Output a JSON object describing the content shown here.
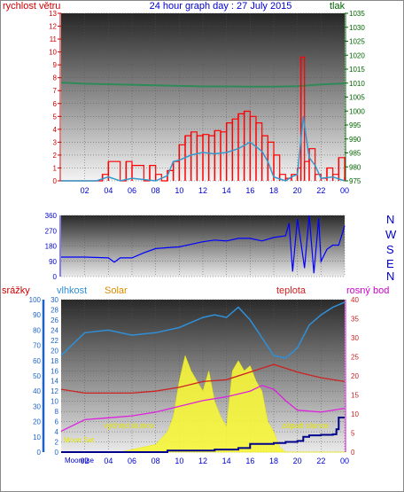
{
  "header": {
    "wind_label": "rychlost větru",
    "title": "24 hour graph day : 27 July 2015",
    "pressure_label": "tlak"
  },
  "direction_labels": [
    "N",
    "W",
    "S",
    "E",
    "N"
  ],
  "bottom_header": {
    "rain_label": "srážky",
    "humidity_label": "vlhkost",
    "solar_label": "Solar",
    "temp_label": "teplota",
    "dew_label": "rosný bod"
  },
  "annotations": {
    "sunrise": "východ slunce",
    "sunset": "západ slunce",
    "moonset": "Moon Set",
    "moonrise": "Moonrise"
  },
  "colors": {
    "wind_label": "#cc0000",
    "title": "#0000cc",
    "pressure_label": "#006600",
    "gust": "#ff0000",
    "wind_avg": "#3399cc",
    "pressure": "#2e8b57",
    "direction": "#0000ff",
    "humidity": "#2f8fd8",
    "solar": "#f5f53a",
    "temp": "#cc2222",
    "dew": "#dd22dd",
    "rain": "#00008b",
    "rain_axis": "#1e64c8",
    "solar_label": "#e08a00",
    "dew_axis": "#cc00cc"
  },
  "chart_data": [
    {
      "type": "line",
      "title": "24 hour graph day : 27 July 2015",
      "x": {
        "ticks": [
          "02",
          "04",
          "06",
          "08",
          "10",
          "12",
          "14",
          "16",
          "18",
          "20",
          "22",
          "00"
        ],
        "range_hours": [
          0,
          24
        ]
      },
      "y_left": {
        "label": "rychlost větru",
        "range": [
          0,
          13
        ],
        "ticks": [
          0,
          1,
          2,
          3,
          4,
          5,
          6,
          7,
          8,
          9,
          10,
          11,
          12,
          13
        ]
      },
      "y_right": {
        "label": "tlak",
        "range": [
          975,
          1035
        ],
        "ticks": [
          975,
          980,
          985,
          990,
          995,
          1000,
          1005,
          1010,
          1015,
          1020,
          1025,
          1030,
          1035
        ]
      },
      "series": [
        {
          "name": "rychlost větru",
          "role": "gust",
          "x": [
            0,
            1,
            2,
            3,
            3.5,
            4,
            5,
            5.5,
            6,
            7,
            7.5,
            8,
            8.5,
            9,
            9.5,
            10,
            10.5,
            11,
            11.5,
            12,
            12.5,
            13,
            13.5,
            14,
            14.5,
            15,
            15.5,
            16,
            16.5,
            17,
            17.5,
            18,
            18.5,
            19,
            19.5,
            20,
            20.3,
            20.6,
            21,
            21.5,
            22,
            22.5,
            23,
            23.5,
            24
          ],
          "values": [
            0,
            0,
            0,
            0,
            0.5,
            1.5,
            0,
            1.5,
            1.2,
            0,
            1.2,
            0.5,
            0,
            0.8,
            1.5,
            2.8,
            3.5,
            3.8,
            3.5,
            3.6,
            3.5,
            3.9,
            3.8,
            4.5,
            4.8,
            5.2,
            5.4,
            5.0,
            4.5,
            3.5,
            3.0,
            2.0,
            0.5,
            0.2,
            0.5,
            1.0,
            9.6,
            1.5,
            2.5,
            0.5,
            0.2,
            1.0,
            0.5,
            1.8,
            0.3
          ]
        },
        {
          "name": "wind average",
          "role": "average",
          "x": [
            0,
            3,
            4,
            5,
            6,
            8,
            9,
            9.5,
            10,
            11,
            12,
            13,
            14,
            15,
            16,
            17,
            17.5,
            18,
            19,
            19.5,
            20,
            20.5,
            21,
            21.5,
            22,
            23,
            24
          ],
          "values": [
            0,
            0,
            0.3,
            0,
            0.2,
            0,
            0.4,
            1.5,
            1.6,
            2.0,
            2.2,
            2.1,
            2.2,
            2.5,
            3.0,
            2.3,
            1.5,
            0.3,
            0,
            0.3,
            0.5,
            5.0,
            1.8,
            1.2,
            0.2,
            0.3,
            0
          ]
        },
        {
          "name": "tlak",
          "x": [
            0,
            2,
            4,
            6,
            8,
            10,
            12,
            14,
            16,
            18,
            20,
            22,
            24
          ],
          "values": [
            1010.2,
            1009.8,
            1009.6,
            1009.4,
            1009.2,
            1009.0,
            1008.8,
            1008.8,
            1008.7,
            1008.7,
            1008.9,
            1009.5,
            1009.9
          ]
        }
      ]
    },
    {
      "type": "line",
      "x": {
        "range_hours": [
          0,
          24
        ]
      },
      "y": {
        "range": [
          0,
          360
        ],
        "ticks": [
          0,
          90,
          180,
          270,
          360
        ]
      },
      "series": [
        {
          "name": "wind direction",
          "x": [
            0,
            2,
            4,
            4.5,
            5,
            6,
            7,
            8,
            9,
            10,
            11,
            12,
            13,
            14,
            15,
            16,
            17,
            18,
            19,
            19.3,
            19.6,
            20,
            20.3,
            20.6,
            21,
            21.4,
            21.8,
            22,
            22.5,
            23,
            23.5,
            24
          ],
          "values": [
            115,
            115,
            110,
            85,
            110,
            110,
            140,
            165,
            170,
            175,
            190,
            205,
            215,
            210,
            225,
            225,
            210,
            230,
            240,
            315,
            30,
            340,
            200,
            50,
            360,
            20,
            345,
            90,
            160,
            185,
            185,
            300
          ]
        }
      ]
    },
    {
      "type": "area",
      "x": {
        "ticks": [
          "02",
          "04",
          "06",
          "08",
          "10",
          "12",
          "14",
          "16",
          "18",
          "20",
          "22",
          "00"
        ],
        "range_hours": [
          0,
          24
        ]
      },
      "y_left": {
        "label": "srážky",
        "range": [
          0,
          100
        ],
        "ticks": [
          0,
          10,
          20,
          30,
          40,
          50,
          60,
          70,
          80,
          90,
          100
        ]
      },
      "y_left2": {
        "label": "vlhkost",
        "range": [
          0,
          30
        ],
        "ticks": [
          0,
          2,
          4,
          6,
          8,
          10,
          12,
          14,
          16,
          18,
          20,
          22,
          24,
          26,
          28,
          30
        ]
      },
      "y_right": {
        "label": "teplota",
        "range": [
          0,
          40
        ],
        "ticks": [
          0,
          5,
          10,
          15,
          20,
          25,
          30,
          35,
          40
        ]
      },
      "series": [
        {
          "name": "vlhkost",
          "x": [
            0,
            2,
            4,
            6,
            8,
            10,
            12,
            13,
            14,
            15,
            16,
            17,
            18,
            19,
            20,
            21,
            22,
            23,
            24
          ],
          "values": [
            19,
            23.5,
            24,
            23,
            23.5,
            24.5,
            26.5,
            27,
            26.5,
            28.5,
            26,
            22.5,
            19,
            18.5,
            20.5,
            25,
            27,
            28.5,
            29.5
          ]
        },
        {
          "name": "Solar",
          "x": [
            0,
            5,
            6,
            7,
            8,
            9,
            9.5,
            10,
            10.5,
            11,
            11.5,
            12,
            12.5,
            13,
            13.5,
            14,
            14.5,
            15,
            15.5,
            16,
            16.5,
            17,
            17.5,
            18,
            18.5,
            19,
            24
          ],
          "values": [
            0,
            0,
            0.5,
            1,
            1.5,
            4,
            7,
            14,
            19,
            16,
            14,
            12,
            16,
            10,
            7,
            5,
            16,
            18,
            16,
            17,
            14,
            12,
            6,
            4,
            1,
            0,
            0
          ]
        },
        {
          "name": "teplota",
          "x": [
            0,
            2,
            4,
            6,
            8,
            10,
            12,
            14,
            16,
            17,
            18,
            19,
            20,
            22,
            24
          ],
          "values": [
            16.5,
            15.5,
            15.5,
            15.5,
            16,
            17,
            18.5,
            19,
            21,
            22,
            23,
            22,
            21,
            19.5,
            18.5
          ]
        },
        {
          "name": "rosný bod",
          "x": [
            0,
            1,
            2,
            4,
            6,
            8,
            10,
            12,
            14,
            16,
            17,
            18,
            19,
            20,
            22,
            24
          ],
          "values": [
            5.5,
            7,
            8.5,
            9,
            9.5,
            10.5,
            12,
            13.5,
            14.5,
            16,
            17.5,
            16.5,
            13.5,
            11,
            10.5,
            11.5
          ]
        },
        {
          "name": "srážky",
          "x": [
            0,
            8,
            9,
            12,
            13,
            15,
            16,
            18,
            19,
            20,
            20.5,
            21,
            22,
            23,
            23.3,
            23.5,
            24
          ],
          "values": [
            0,
            0,
            0.3,
            0.3,
            0.5,
            0.8,
            1.6,
            1.8,
            2.0,
            2.2,
            3.0,
            3.3,
            3.4,
            3.5,
            4.5,
            6.8,
            6.8
          ]
        }
      ]
    }
  ]
}
